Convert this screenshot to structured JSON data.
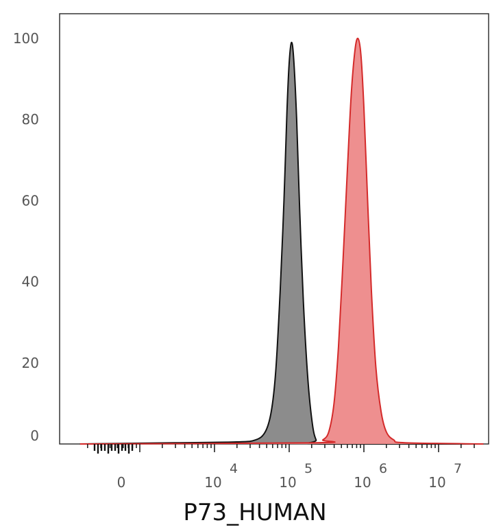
{
  "chart_data": {
    "type": "area",
    "xlabel": "P73_HUMAN",
    "ylabel": "",
    "title": "",
    "x_scale": "biexponential",
    "xlim_log10": [
      2.2,
      7.6
    ],
    "ylim": [
      0,
      100
    ],
    "grid": false,
    "legend": "none",
    "y_ticks": [
      {
        "value": 0,
        "label": "0"
      },
      {
        "value": 20,
        "label": "20"
      },
      {
        "value": 40,
        "label": "40"
      },
      {
        "value": 60,
        "label": "60"
      },
      {
        "value": 80,
        "label": "80"
      },
      {
        "value": 100,
        "label": "100"
      }
    ],
    "x_ticks": [
      {
        "log10": 3.0,
        "base": "0",
        "exp": ""
      },
      {
        "log10": 4.0,
        "base": "10",
        "exp": "4"
      },
      {
        "log10": 5.0,
        "base": "10",
        "exp": "5"
      },
      {
        "log10": 6.0,
        "base": "10",
        "exp": "6"
      },
      {
        "log10": 7.0,
        "base": "10",
        "exp": "7"
      }
    ],
    "series": [
      {
        "color": "#111111",
        "fill": "#8c8c8c",
        "peak_log10": 5.04,
        "values": [
          [
            2.2,
            0
          ],
          [
            3.5,
            0.3
          ],
          [
            4.3,
            0.5
          ],
          [
            4.55,
            1
          ],
          [
            4.68,
            3
          ],
          [
            4.76,
            8
          ],
          [
            4.82,
            18
          ],
          [
            4.88,
            38
          ],
          [
            4.93,
            60
          ],
          [
            4.97,
            82
          ],
          [
            5.0,
            94
          ],
          [
            5.03,
            99
          ],
          [
            5.06,
            95
          ],
          [
            5.1,
            80
          ],
          [
            5.14,
            58
          ],
          [
            5.19,
            35
          ],
          [
            5.25,
            16
          ],
          [
            5.31,
            5
          ],
          [
            5.36,
            1
          ],
          [
            5.42,
            0
          ],
          [
            7.6,
            0
          ]
        ]
      },
      {
        "color": "#d42a2a",
        "fill": "#ee8f8f",
        "peak_log10": 5.92,
        "values": [
          [
            2.2,
            0
          ],
          [
            5.35,
            0.3
          ],
          [
            5.45,
            1
          ],
          [
            5.53,
            3
          ],
          [
            5.6,
            10
          ],
          [
            5.66,
            24
          ],
          [
            5.72,
            45
          ],
          [
            5.78,
            68
          ],
          [
            5.83,
            86
          ],
          [
            5.88,
            97
          ],
          [
            5.92,
            100
          ],
          [
            5.96,
            96
          ],
          [
            6.0,
            83
          ],
          [
            6.05,
            60
          ],
          [
            6.1,
            38
          ],
          [
            6.16,
            19
          ],
          [
            6.23,
            8
          ],
          [
            6.3,
            3
          ],
          [
            6.4,
            1
          ],
          [
            6.55,
            0.3
          ],
          [
            7.6,
            0
          ]
        ]
      }
    ]
  }
}
